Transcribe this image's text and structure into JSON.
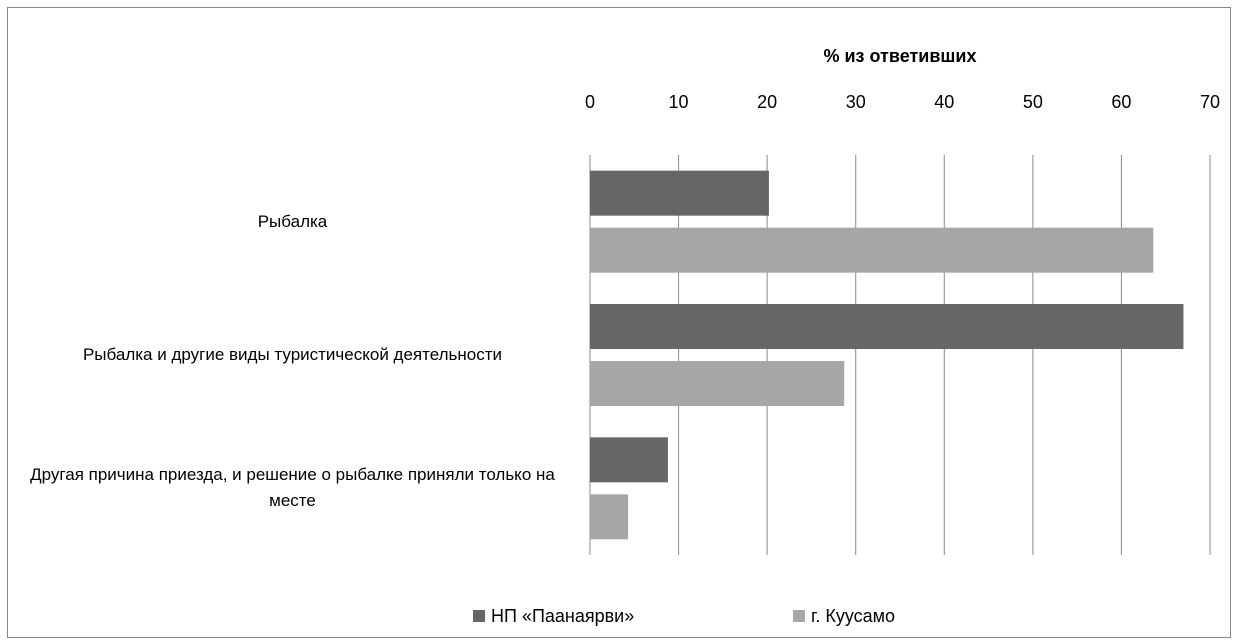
{
  "chart_data": {
    "type": "barh",
    "title": "% из ответивших",
    "categories": [
      "Рыбалка",
      "Рыбалка и другие виды туристической деятельности",
      "Другая причина приезда, и решение о рыбалке приняли только на месте"
    ],
    "series": [
      {
        "name": "НП «Паанаярви»",
        "color": "#666666",
        "values": [
          20.2,
          67,
          8.8
        ]
      },
      {
        "name": "г. Куусамо",
        "color": "#a6a6a6",
        "values": [
          63.6,
          28.7,
          4.3
        ]
      }
    ],
    "xlim": [
      0,
      70
    ],
    "xticks": [
      0,
      10,
      20,
      30,
      40,
      50,
      60,
      70
    ],
    "grid": true,
    "legend": "bottom"
  }
}
